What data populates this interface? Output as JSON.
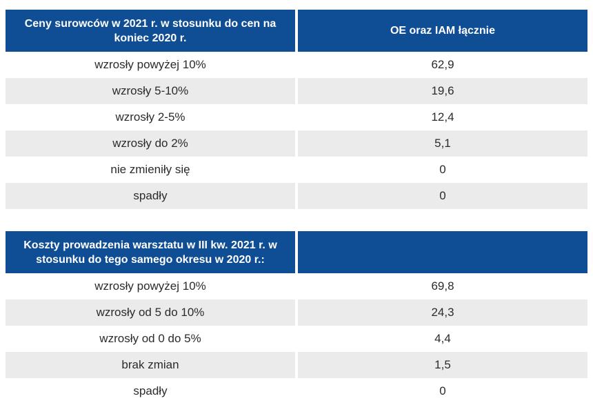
{
  "table1": {
    "header": [
      "Ceny surowców w 2021 r. w stosunku do cen na koniec 2020 r.",
      "OE oraz IAM łącznie"
    ],
    "rows": [
      [
        "wzrosły powyżej 10%",
        "62,9"
      ],
      [
        "wzrosły 5-10%",
        "19,6"
      ],
      [
        "wzrosły 2-5%",
        "12,4"
      ],
      [
        "wzrosły do 2%",
        "5,1"
      ],
      [
        "nie zmieniły się",
        "0"
      ],
      [
        "spadły",
        "0"
      ]
    ]
  },
  "table2": {
    "header": [
      "Koszty prowadzenia warsztatu w III kw. 2021 r. w stosunku do tego samego okresu w 2020 r.:",
      ""
    ],
    "rows": [
      [
        "wzrosły powyżej 10%",
        "69,8"
      ],
      [
        "wzrosły od 5 do 10%",
        "24,3"
      ],
      [
        "wzrosły od 0 do 5%",
        "4,4"
      ],
      [
        "brak zmian",
        "1,5"
      ],
      [
        "spadły",
        "0"
      ]
    ]
  }
}
